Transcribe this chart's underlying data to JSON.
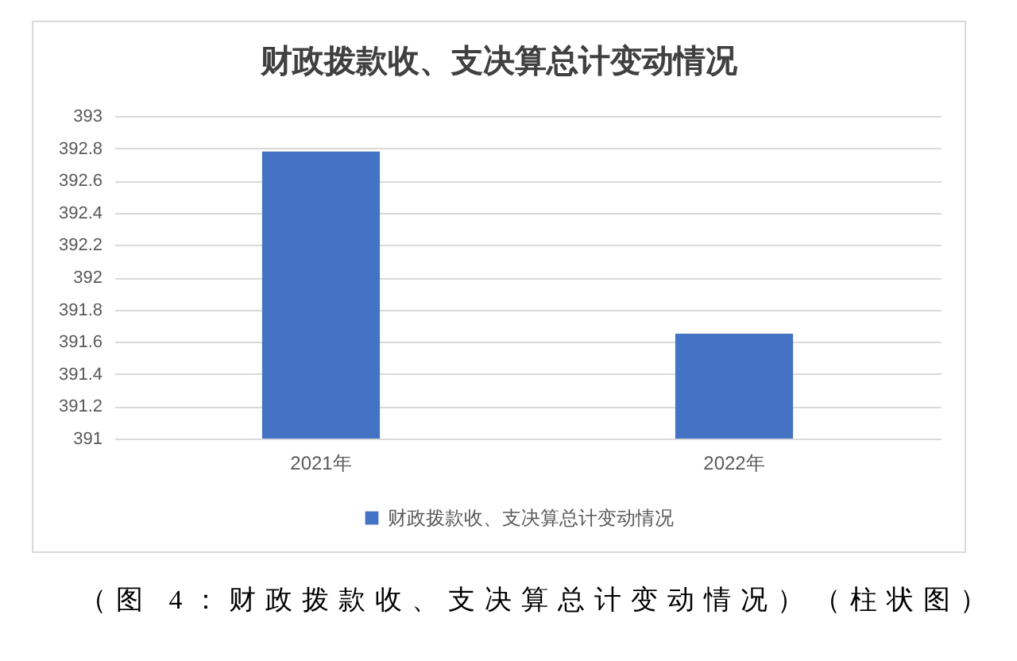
{
  "chart_data": {
    "type": "bar",
    "title": "财政拨款收、支决算总计变动情况",
    "categories": [
      "2021年",
      "2022年"
    ],
    "series": [
      {
        "name": "财政拨款收、支决算总计变动情况",
        "color": "#4472c4",
        "values": [
          392.78,
          391.65
        ]
      }
    ],
    "ylim": [
      391,
      393
    ],
    "yticks": [
      391,
      391.2,
      391.4,
      391.6,
      391.8,
      392,
      392.2,
      392.4,
      392.6,
      392.8,
      393
    ],
    "grid": "y",
    "legend": "bottom",
    "annotations": [
      "（图 4：财政拨款收、支决算总计变动情况）（柱状图）"
    ]
  }
}
